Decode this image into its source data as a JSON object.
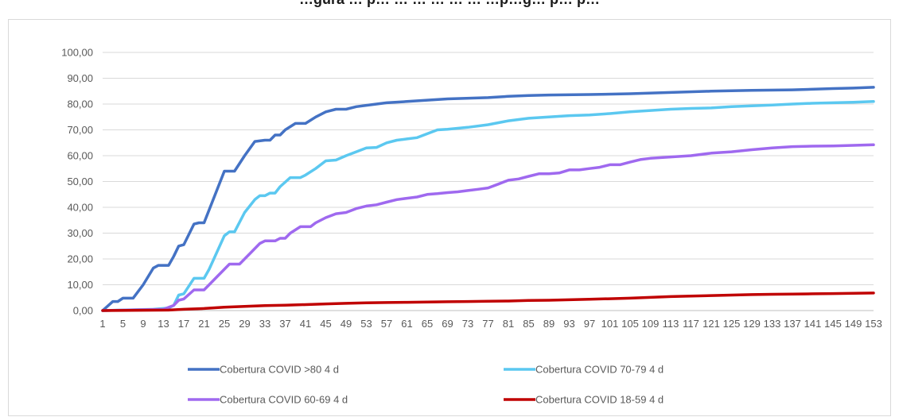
{
  "chart_data": {
    "type": "line",
    "title": "…gura … p… … … … … … …p…g… p… p…",
    "xlabel": "",
    "ylabel": "",
    "ylim": [
      0,
      100
    ],
    "yticks": [
      "0,00",
      "10,00",
      "20,00",
      "30,00",
      "40,00",
      "50,00",
      "60,00",
      "70,00",
      "80,00",
      "90,00",
      "100,00"
    ],
    "xlim": [
      1,
      153
    ],
    "xtick_start": 1,
    "xtick_step": 4,
    "xtick_end": 153,
    "grid": "horizontal",
    "legend_position": "bottom",
    "series": [
      {
        "name": "Cobertura COVID >80 4 d",
        "color": "#4472c4",
        "points": [
          [
            1,
            0
          ],
          [
            3,
            3.5
          ],
          [
            4,
            3.5
          ],
          [
            5,
            4.8
          ],
          [
            7,
            4.8
          ],
          [
            9,
            10
          ],
          [
            11,
            16.5
          ],
          [
            12,
            17.5
          ],
          [
            14,
            17.5
          ],
          [
            15,
            21
          ],
          [
            16,
            25
          ],
          [
            17,
            25.5
          ],
          [
            19,
            33.5
          ],
          [
            20,
            34
          ],
          [
            21,
            34
          ],
          [
            25,
            54
          ],
          [
            27,
            54
          ],
          [
            29,
            60
          ],
          [
            31,
            65.5
          ],
          [
            33,
            66
          ],
          [
            34,
            66
          ],
          [
            35,
            68
          ],
          [
            36,
            68
          ],
          [
            37,
            70
          ],
          [
            39,
            72.5
          ],
          [
            40,
            72.5
          ],
          [
            41,
            72.5
          ],
          [
            43,
            75
          ],
          [
            45,
            77
          ],
          [
            47,
            78
          ],
          [
            49,
            78
          ],
          [
            51,
            79
          ],
          [
            53,
            79.5
          ],
          [
            57,
            80.5
          ],
          [
            61,
            81
          ],
          [
            65,
            81.5
          ],
          [
            69,
            82
          ],
          [
            77,
            82.5
          ],
          [
            81,
            83
          ],
          [
            85,
            83.3
          ],
          [
            89,
            83.5
          ],
          [
            97,
            83.7
          ],
          [
            105,
            84
          ],
          [
            113,
            84.5
          ],
          [
            121,
            85
          ],
          [
            129,
            85.3
          ],
          [
            137,
            85.5
          ],
          [
            145,
            86
          ],
          [
            149,
            86.2
          ],
          [
            153,
            86.5
          ]
        ]
      },
      {
        "name": "Cobertura COVID 70-79 4 d",
        "color": "#5bc8f0",
        "points": [
          [
            1,
            0
          ],
          [
            11,
            0.5
          ],
          [
            14,
            1
          ],
          [
            15,
            2
          ],
          [
            16,
            6
          ],
          [
            17,
            6.5
          ],
          [
            19,
            12.5
          ],
          [
            20,
            12.5
          ],
          [
            21,
            12.5
          ],
          [
            22,
            16
          ],
          [
            25,
            29
          ],
          [
            26,
            30.5
          ],
          [
            27,
            30.5
          ],
          [
            29,
            38
          ],
          [
            31,
            43
          ],
          [
            32,
            44.5
          ],
          [
            33,
            44.5
          ],
          [
            34,
            45.5
          ],
          [
            35,
            45.5
          ],
          [
            36,
            48
          ],
          [
            38,
            51.5
          ],
          [
            40,
            51.5
          ],
          [
            41,
            52.5
          ],
          [
            43,
            55
          ],
          [
            45,
            58
          ],
          [
            47,
            58.3
          ],
          [
            49,
            60
          ],
          [
            51,
            61.5
          ],
          [
            53,
            63
          ],
          [
            55,
            63.2
          ],
          [
            57,
            65
          ],
          [
            59,
            66
          ],
          [
            61,
            66.5
          ],
          [
            63,
            67
          ],
          [
            65,
            68.5
          ],
          [
            67,
            70
          ],
          [
            69,
            70.2
          ],
          [
            73,
            71
          ],
          [
            77,
            72
          ],
          [
            81,
            73.5
          ],
          [
            85,
            74.5
          ],
          [
            89,
            75
          ],
          [
            93,
            75.5
          ],
          [
            97,
            75.8
          ],
          [
            101,
            76.3
          ],
          [
            105,
            77
          ],
          [
            109,
            77.5
          ],
          [
            113,
            78
          ],
          [
            117,
            78.3
          ],
          [
            121,
            78.5
          ],
          [
            125,
            79
          ],
          [
            129,
            79.3
          ],
          [
            133,
            79.6
          ],
          [
            137,
            80
          ],
          [
            141,
            80.3
          ],
          [
            145,
            80.5
          ],
          [
            149,
            80.7
          ],
          [
            153,
            81
          ]
        ]
      },
      {
        "name": "Cobertura COVID 60-69 4 d",
        "color": "#9f69ef",
        "points": [
          [
            1,
            0
          ],
          [
            13,
            0.5
          ],
          [
            15,
            2
          ],
          [
            16,
            4
          ],
          [
            17,
            4.5
          ],
          [
            19,
            8
          ],
          [
            20,
            8
          ],
          [
            21,
            8
          ],
          [
            22,
            10
          ],
          [
            24,
            14
          ],
          [
            26,
            18
          ],
          [
            28,
            18
          ],
          [
            30,
            22
          ],
          [
            32,
            26
          ],
          [
            33,
            27
          ],
          [
            35,
            27
          ],
          [
            36,
            28
          ],
          [
            37,
            28
          ],
          [
            38,
            30
          ],
          [
            40,
            32.5
          ],
          [
            42,
            32.5
          ],
          [
            43,
            34
          ],
          [
            45,
            36
          ],
          [
            47,
            37.5
          ],
          [
            49,
            38
          ],
          [
            51,
            39.5
          ],
          [
            53,
            40.5
          ],
          [
            55,
            41
          ],
          [
            57,
            42
          ],
          [
            59,
            43
          ],
          [
            61,
            43.5
          ],
          [
            63,
            44
          ],
          [
            65,
            45
          ],
          [
            67,
            45.3
          ],
          [
            69,
            45.7
          ],
          [
            71,
            46
          ],
          [
            73,
            46.5
          ],
          [
            75,
            47
          ],
          [
            77,
            47.5
          ],
          [
            79,
            49
          ],
          [
            81,
            50.5
          ],
          [
            83,
            51
          ],
          [
            85,
            52
          ],
          [
            87,
            53
          ],
          [
            89,
            53
          ],
          [
            91,
            53.3
          ],
          [
            93,
            54.5
          ],
          [
            95,
            54.5
          ],
          [
            97,
            55
          ],
          [
            99,
            55.5
          ],
          [
            101,
            56.5
          ],
          [
            103,
            56.5
          ],
          [
            105,
            57.5
          ],
          [
            107,
            58.5
          ],
          [
            109,
            59
          ],
          [
            113,
            59.5
          ],
          [
            117,
            60
          ],
          [
            121,
            61
          ],
          [
            125,
            61.5
          ],
          [
            129,
            62.3
          ],
          [
            133,
            63
          ],
          [
            137,
            63.5
          ],
          [
            141,
            63.7
          ],
          [
            145,
            63.8
          ],
          [
            149,
            64
          ],
          [
            153,
            64.2
          ]
        ]
      },
      {
        "name": "Cobertura COVID 18-59 4 d",
        "color": "#c00000",
        "points": [
          [
            1,
            0
          ],
          [
            14,
            0.2
          ],
          [
            17,
            0.5
          ],
          [
            21,
            0.8
          ],
          [
            25,
            1.3
          ],
          [
            29,
            1.6
          ],
          [
            33,
            1.9
          ],
          [
            37,
            2.1
          ],
          [
            41,
            2.3
          ],
          [
            45,
            2.6
          ],
          [
            49,
            2.8
          ],
          [
            53,
            3
          ],
          [
            57,
            3.1
          ],
          [
            61,
            3.2
          ],
          [
            65,
            3.3
          ],
          [
            69,
            3.4
          ],
          [
            73,
            3.5
          ],
          [
            77,
            3.6
          ],
          [
            81,
            3.7
          ],
          [
            85,
            3.9
          ],
          [
            89,
            4
          ],
          [
            93,
            4.2
          ],
          [
            97,
            4.4
          ],
          [
            101,
            4.6
          ],
          [
            105,
            4.8
          ],
          [
            109,
            5.1
          ],
          [
            113,
            5.4
          ],
          [
            117,
            5.6
          ],
          [
            121,
            5.8
          ],
          [
            125,
            6
          ],
          [
            129,
            6.2
          ],
          [
            133,
            6.3
          ],
          [
            137,
            6.4
          ],
          [
            141,
            6.5
          ],
          [
            145,
            6.6
          ],
          [
            149,
            6.7
          ],
          [
            153,
            6.8
          ]
        ]
      }
    ]
  }
}
